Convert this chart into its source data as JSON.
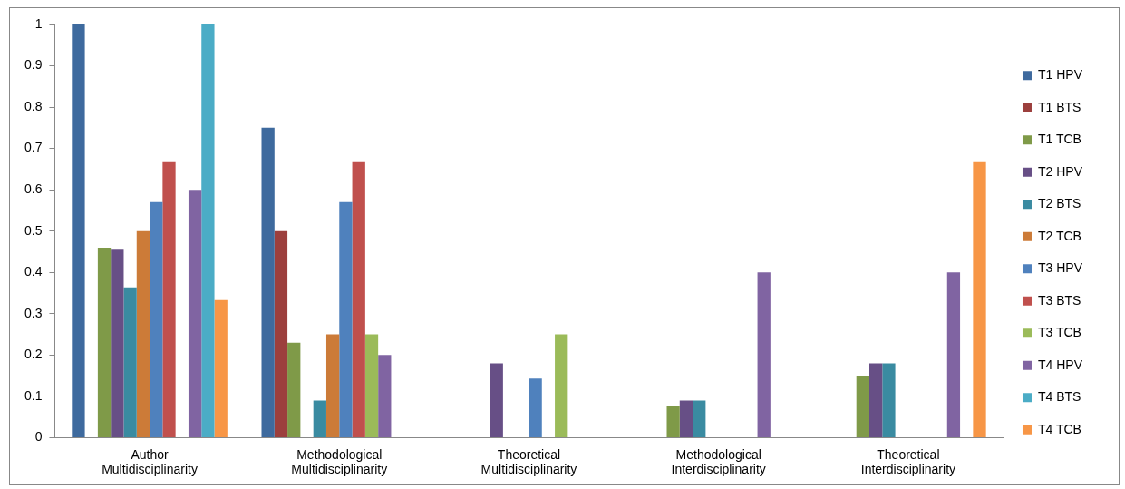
{
  "chart_data": {
    "type": "bar",
    "categories": [
      "Author Multidisciplinarity",
      "Methodological Multidisciplinarity",
      "Theoretical Multidisciplinarity",
      "Methodological Interdisciplinarity",
      "Theoretical Interdisciplinarity"
    ],
    "ylim": [
      0,
      1
    ],
    "yticks": [
      0,
      0.1,
      0.2,
      0.3,
      0.4,
      0.5,
      0.6,
      0.7,
      0.8,
      0.9,
      1
    ],
    "grid": false,
    "legend": "right",
    "series": [
      {
        "name": "T1 HPV",
        "color": "#3e6a9e",
        "values": [
          1,
          0.75,
          0,
          0,
          0
        ]
      },
      {
        "name": "T1 BTS",
        "color": "#9c3f3d",
        "values": [
          0,
          0.5,
          0,
          0,
          0
        ]
      },
      {
        "name": "T1 TCB",
        "color": "#7f9a48",
        "values": [
          0.46,
          0.23,
          0,
          0.077,
          0.15
        ]
      },
      {
        "name": "T2 HPV",
        "color": "#674f86",
        "values": [
          0.455,
          0,
          0.18,
          0.09,
          0.18
        ]
      },
      {
        "name": "T2 BTS",
        "color": "#3a8ba1",
        "values": [
          0.364,
          0.09,
          0,
          0.09,
          0.18
        ]
      },
      {
        "name": "T2 TCB",
        "color": "#cc7b38",
        "values": [
          0.5,
          0.25,
          0,
          0,
          0
        ]
      },
      {
        "name": "T3 HPV",
        "color": "#4f81bd",
        "values": [
          0.57,
          0.57,
          0.143,
          0,
          0
        ]
      },
      {
        "name": "T3 BTS",
        "color": "#c0504d",
        "values": [
          0.667,
          0.667,
          0,
          0,
          0
        ]
      },
      {
        "name": "T3 TCB",
        "color": "#9bbb59",
        "values": [
          0,
          0.25,
          0.25,
          0,
          0
        ]
      },
      {
        "name": "T4 HPV",
        "color": "#8064a2",
        "values": [
          0.6,
          0.2,
          0,
          0.4,
          0.4
        ]
      },
      {
        "name": "T4 BTS",
        "color": "#4bacc6",
        "values": [
          1,
          0,
          0,
          0,
          0
        ]
      },
      {
        "name": "T4 TCB",
        "color": "#f79646",
        "values": [
          0.333,
          0,
          0,
          0,
          0.667
        ]
      }
    ]
  }
}
